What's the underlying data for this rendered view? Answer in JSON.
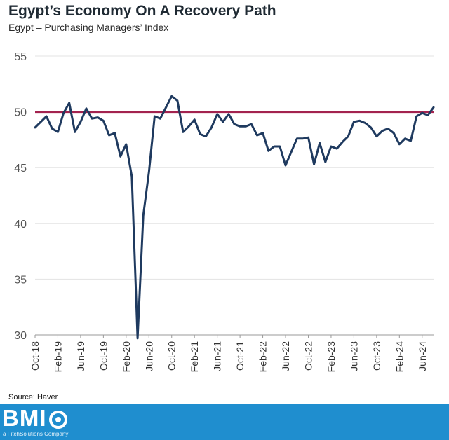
{
  "header": {
    "title": "Egypt’s Economy On A Recovery Path",
    "subtitle": "Egypt –  Purchasing Managers’ Index"
  },
  "source": "Source: Haver",
  "brand": {
    "logo_text": "BMI",
    "logo_sub": "a FitchSolutions Company",
    "logo_icon": "ring-icon",
    "bar_color": "#1f8ecf"
  },
  "chart_data": {
    "type": "line",
    "title": "Egypt’s Economy On A Recovery Path",
    "subtitle": "Egypt –  Purchasing Managers’ Index",
    "xlabel": "",
    "ylabel": "",
    "ylim": [
      30,
      55
    ],
    "yticks": [
      30,
      35,
      40,
      45,
      50,
      55
    ],
    "grid": true,
    "x_tick_labels": [
      "Oct-18",
      "Feb-19",
      "Jun-19",
      "Oct-19",
      "Feb-20",
      "Jun-20",
      "Oct-20",
      "Feb-21",
      "Jun-21",
      "Oct-21",
      "Feb-22",
      "Jun-22",
      "Oct-22",
      "Feb-23",
      "Jun-23",
      "Oct-23",
      "Feb-24",
      "Jun-24"
    ],
    "x_tick_start_index": 0,
    "x_tick_step": 4,
    "x": [
      "Oct-18",
      "Nov-18",
      "Dec-18",
      "Jan-19",
      "Feb-19",
      "Mar-19",
      "Apr-19",
      "May-19",
      "Jun-19",
      "Jul-19",
      "Aug-19",
      "Sep-19",
      "Oct-19",
      "Nov-19",
      "Dec-19",
      "Jan-20",
      "Feb-20",
      "Mar-20",
      "Apr-20",
      "May-20",
      "Jun-20",
      "Jul-20",
      "Aug-20",
      "Sep-20",
      "Oct-20",
      "Nov-20",
      "Dec-20",
      "Jan-21",
      "Feb-21",
      "Mar-21",
      "Apr-21",
      "May-21",
      "Jun-21",
      "Jul-21",
      "Aug-21",
      "Sep-21",
      "Oct-21",
      "Nov-21",
      "Dec-21",
      "Jan-22",
      "Feb-22",
      "Mar-22",
      "Apr-22",
      "May-22",
      "Jun-22",
      "Jul-22",
      "Aug-22",
      "Sep-22",
      "Oct-22",
      "Nov-22",
      "Dec-22",
      "Jan-23",
      "Feb-23",
      "Mar-23",
      "Apr-23",
      "May-23",
      "Jun-23",
      "Jul-23",
      "Aug-23",
      "Sep-23",
      "Oct-23",
      "Nov-23",
      "Dec-23",
      "Jan-24",
      "Feb-24",
      "Mar-24",
      "Apr-24",
      "May-24",
      "Jun-24",
      "Jul-24",
      "Aug-24"
    ],
    "series": [
      {
        "name": "",
        "color": "#1f3a5f",
        "values": [
          48.6,
          49.1,
          49.6,
          48.5,
          48.2,
          49.9,
          50.8,
          48.2,
          49.1,
          50.3,
          49.4,
          49.5,
          49.2,
          47.9,
          48.1,
          46.0,
          47.1,
          44.2,
          29.7,
          40.7,
          44.6,
          49.6,
          49.4,
          50.4,
          51.4,
          51.0,
          48.2,
          48.7,
          49.3,
          48.0,
          47.8,
          48.6,
          49.8,
          49.1,
          49.8,
          48.9,
          48.7,
          48.7,
          48.9,
          47.9,
          48.1,
          46.5,
          46.9,
          46.9,
          45.2,
          46.4,
          47.6,
          47.6,
          47.7,
          45.3,
          47.2,
          45.5,
          46.9,
          46.7,
          47.3,
          47.8,
          49.1,
          49.2,
          49.0,
          48.6,
          47.8,
          48.3,
          48.5,
          48.1,
          47.1,
          47.6,
          47.4,
          49.6,
          49.9,
          49.7,
          50.4
        ]
      }
    ],
    "reference_line": {
      "value": 50,
      "color": "#a3234f"
    }
  }
}
